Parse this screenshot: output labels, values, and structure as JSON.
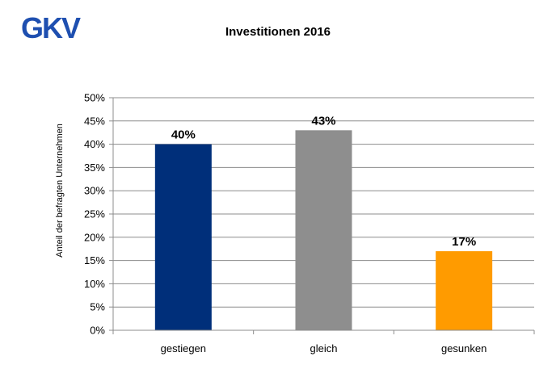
{
  "logo_text": "GKV",
  "chart_data": {
    "type": "bar",
    "title": "Investitionen 2016",
    "xlabel": "",
    "ylabel": "Anteil der befragten Unternehmen",
    "categories": [
      "gestiegen",
      "gleich",
      "gesunken"
    ],
    "values": [
      40,
      43,
      17
    ],
    "data_labels": [
      "40%",
      "43%",
      "17%"
    ],
    "colors": [
      "#002f7a",
      "#8e8e8e",
      "#ff9b00"
    ],
    "ylim": [
      0,
      50
    ],
    "yticks": [
      0,
      5,
      10,
      15,
      20,
      25,
      30,
      35,
      40,
      45,
      50
    ],
    "ytick_labels": [
      "0%",
      "5%",
      "10%",
      "15%",
      "20%",
      "25%",
      "30%",
      "35%",
      "40%",
      "45%",
      "50%"
    ],
    "grid": true,
    "legend": "none"
  }
}
